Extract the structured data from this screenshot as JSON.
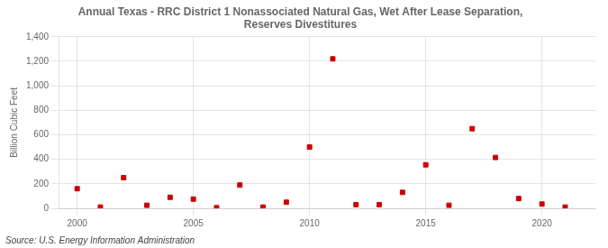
{
  "chart_data": {
    "type": "scatter",
    "title": "Annual Texas - RRC District 1 Nonassociated Natural Gas, Wet After Lease Separation,\nReserves Divestitures",
    "ylabel": "Billion Cubic Feet",
    "annotation": "Source: U.S. Energy Information Administration",
    "x": [
      2000,
      2001,
      2002,
      2003,
      2004,
      2005,
      2006,
      2007,
      2008,
      2009,
      2010,
      2011,
      2012,
      2013,
      2014,
      2015,
      2016,
      2017,
      2018,
      2019,
      2020,
      2021
    ],
    "values": [
      160,
      10,
      250,
      25,
      90,
      75,
      5,
      190,
      10,
      50,
      500,
      1220,
      30,
      30,
      130,
      355,
      25,
      650,
      415,
      80,
      35,
      10
    ],
    "color": "#cc0000",
    "marker": "square",
    "xlim": [
      1999.2,
      2022.3
    ],
    "xticks": [
      2000,
      2005,
      2010,
      2015,
      2020
    ],
    "ylim": [
      0,
      1400
    ],
    "yticks": [
      0,
      200,
      400,
      600,
      800,
      {
        "value": 1000,
        "label": "1,000"
      },
      {
        "value": 1200,
        "label": "1,200"
      },
      {
        "value": 1400,
        "label": "1,400"
      }
    ],
    "grid": true
  }
}
